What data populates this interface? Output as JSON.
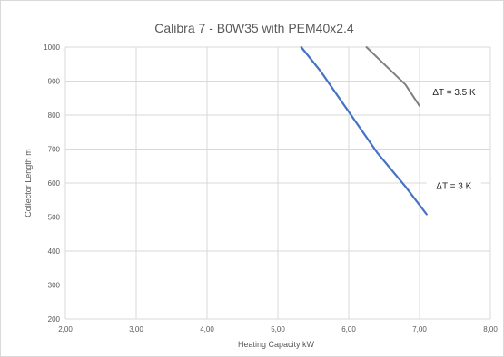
{
  "chart_data": {
    "type": "line",
    "title": "Calibra 7 - B0W35 with PEM40x2.4",
    "xlabel": "Heating Capacity  kW",
    "ylabel": "Collector Length   m",
    "xlim": [
      2,
      8
    ],
    "ylim": [
      200,
      1000
    ],
    "x_ticks": [
      "2,00",
      "3,00",
      "4,00",
      "5,00",
      "6,00",
      "7,00",
      "8,00"
    ],
    "y_ticks": [
      "200",
      "300",
      "400",
      "500",
      "600",
      "700",
      "800",
      "900",
      "1000"
    ],
    "grid": true,
    "series": [
      {
        "name": "ΔT = 3 K",
        "color": "#4472C4",
        "points": [
          [
            5.33,
            1000
          ],
          [
            5.6,
            930
          ],
          [
            6.0,
            810
          ],
          [
            6.4,
            690
          ],
          [
            6.8,
            590
          ],
          [
            7.1,
            508
          ]
        ]
      },
      {
        "name": "ΔT = 3.5 K",
        "color": "#7F7F7F",
        "points": [
          [
            6.25,
            1000
          ],
          [
            6.5,
            950
          ],
          [
            6.8,
            890
          ],
          [
            7.0,
            827
          ]
        ]
      }
    ],
    "annotations": [
      "ΔT = 3.5 K",
      "ΔT = 3 K"
    ]
  }
}
